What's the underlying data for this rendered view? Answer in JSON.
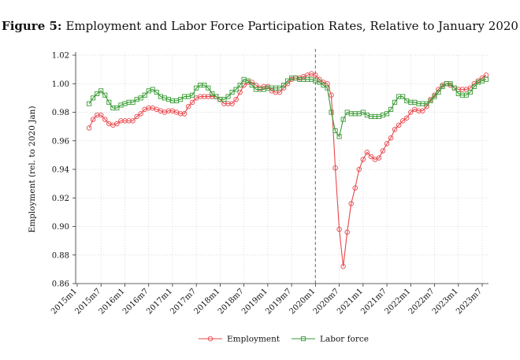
{
  "figure": {
    "label": "Figure 5:",
    "title": "Employment and Labor Force Participation Rates, Relative to January 2020"
  },
  "chart_data": {
    "type": "line",
    "title": "Employment and Labor Force Participation Rates, Relative to January 2020",
    "ylabel": "Employment (rel. to 2020 Jan)",
    "xlabel": "",
    "ylim": [
      0.86,
      1.02
    ],
    "yticks": [
      "0.86",
      "0.88",
      "0.90",
      "0.92",
      "0.94",
      "0.96",
      "0.98",
      "1.00",
      "1.02"
    ],
    "xticks": [
      "2015m1",
      "2015m7",
      "2016m1",
      "2016m7",
      "2017m1",
      "2017m7",
      "2018m1",
      "2018m7",
      "2019m1",
      "2019m7",
      "2020m1",
      "2020m7",
      "2021m1",
      "2021m7",
      "2022m1",
      "2022m7",
      "2023m1",
      "2023m7"
    ],
    "x_start": "2015m4",
    "reference_line": "2020m1",
    "grid": true,
    "legend_position": "bottom",
    "series": [
      {
        "name": "Employment",
        "color": "#e8474d",
        "marker": "circle",
        "values": [
          0.969,
          0.975,
          0.978,
          0.978,
          0.975,
          0.972,
          0.971,
          0.972,
          0.974,
          0.974,
          0.974,
          0.974,
          0.977,
          0.979,
          0.982,
          0.983,
          0.983,
          0.982,
          0.981,
          0.98,
          0.981,
          0.981,
          0.98,
          0.979,
          0.979,
          0.984,
          0.987,
          0.99,
          0.991,
          0.991,
          0.991,
          0.991,
          0.991,
          0.989,
          0.986,
          0.986,
          0.986,
          0.989,
          0.994,
          0.999,
          1.001,
          1.001,
          0.999,
          0.997,
          0.998,
          0.998,
          0.995,
          0.994,
          0.994,
          0.997,
          1.0,
          1.003,
          1.004,
          1.004,
          1.005,
          1.006,
          1.007,
          1.006,
          1.003,
          1.001,
          1.0,
          0.992,
          0.941,
          0.898,
          0.872,
          0.896,
          0.916,
          0.927,
          0.94,
          0.947,
          0.952,
          0.949,
          0.947,
          0.948,
          0.953,
          0.958,
          0.962,
          0.968,
          0.971,
          0.974,
          0.976,
          0.98,
          0.982,
          0.981,
          0.981,
          0.984,
          0.989,
          0.992,
          0.996,
          0.999,
          1.0,
          0.999,
          0.997,
          0.996,
          0.996,
          0.996,
          0.997,
          1.0,
          1.002,
          1.004,
          1.006
        ]
      },
      {
        "name": "Labor force",
        "color": "#3a9a35",
        "marker": "square",
        "values": [
          0.986,
          0.99,
          0.993,
          0.995,
          0.992,
          0.987,
          0.983,
          0.983,
          0.985,
          0.986,
          0.987,
          0.987,
          0.989,
          0.99,
          0.992,
          0.995,
          0.996,
          0.994,
          0.991,
          0.99,
          0.989,
          0.988,
          0.988,
          0.989,
          0.991,
          0.991,
          0.992,
          0.997,
          0.999,
          0.999,
          0.997,
          0.993,
          0.991,
          0.989,
          0.989,
          0.991,
          0.994,
          0.996,
          0.999,
          1.003,
          1.002,
          0.999,
          0.996,
          0.996,
          0.996,
          0.997,
          0.997,
          0.997,
          0.997,
          0.999,
          1.002,
          1.004,
          1.004,
          1.003,
          1.003,
          1.003,
          1.003,
          1.002,
          1.001,
          0.999,
          0.997,
          0.98,
          0.967,
          0.963,
          0.975,
          0.98,
          0.979,
          0.979,
          0.979,
          0.98,
          0.978,
          0.977,
          0.977,
          0.977,
          0.978,
          0.979,
          0.982,
          0.987,
          0.991,
          0.991,
          0.988,
          0.987,
          0.987,
          0.986,
          0.986,
          0.986,
          0.988,
          0.991,
          0.994,
          0.998,
          1.0,
          1.0,
          0.997,
          0.993,
          0.992,
          0.992,
          0.994,
          0.998,
          1.001,
          1.002,
          1.003
        ]
      }
    ]
  }
}
